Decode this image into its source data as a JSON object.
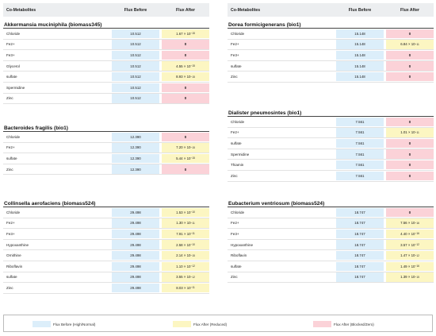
{
  "headers": {
    "name": "Co-Metabolites",
    "before": "Flux Before",
    "after": "Flux After"
  },
  "colors": {
    "header_bg": "#eceef0",
    "before": "#dceefa",
    "reduced": "#fcf6c2",
    "blocked": "#fbd2d8"
  },
  "left": [
    {
      "organism": "Akkermansia muciniphila (biomass345)",
      "rows": [
        {
          "name": "Chloride",
          "before": "10.512",
          "after_mant": "1.67 × 10",
          "after_exp": "−15",
          "status": "reduced"
        },
        {
          "name": "Fe2+",
          "before": "10.512",
          "after_mant": "0",
          "after_exp": "",
          "status": "blocked"
        },
        {
          "name": "Fe3+",
          "before": "10.512",
          "after_mant": "0",
          "after_exp": "",
          "status": "blocked"
        },
        {
          "name": "Glycerol",
          "before": "10.512",
          "after_mant": "4.55 × 10",
          "after_exp": "−15",
          "status": "reduced"
        },
        {
          "name": "sulfate",
          "before": "10.512",
          "after_mant": "8.93 × 10",
          "after_exp": "−15",
          "status": "reduced"
        },
        {
          "name": "Spermidine",
          "before": "10.512",
          "after_mant": "0",
          "after_exp": "",
          "status": "blocked"
        },
        {
          "name": "Zinc",
          "before": "10.512",
          "after_mant": "0",
          "after_exp": "",
          "status": "blocked"
        }
      ]
    },
    {
      "organism": "Bacteroides fragilis (bio1)",
      "rows": [
        {
          "name": "Chloride",
          "before": "12.390",
          "after_mant": "0",
          "after_exp": "",
          "status": "blocked"
        },
        {
          "name": "Fe2+",
          "before": "12.390",
          "after_mant": "7.20 × 10",
          "after_exp": "−15",
          "status": "reduced"
        },
        {
          "name": "sulfate",
          "before": "12.390",
          "after_mant": "5.44 × 10",
          "after_exp": "−15",
          "status": "reduced"
        },
        {
          "name": "Zinc",
          "before": "12.390",
          "after_mant": "0",
          "after_exp": "",
          "status": "blocked"
        }
      ]
    },
    {
      "organism": "Collinsella aerofaciens (biomass524)",
      "rows": [
        {
          "name": "Chloride",
          "before": "29.498",
          "after_mant": "1.53 × 10",
          "after_exp": "−10",
          "status": "reduced"
        },
        {
          "name": "Fe2+",
          "before": "29.498",
          "after_mant": "1.30 × 10",
          "after_exp": "−11",
          "status": "reduced"
        },
        {
          "name": "Fe3+",
          "before": "29.498",
          "after_mant": "7.91 × 10",
          "after_exp": "−11",
          "status": "reduced"
        },
        {
          "name": "Hypoxanthine",
          "before": "29.498",
          "after_mant": "2.58 × 10",
          "after_exp": "−10",
          "status": "reduced"
        },
        {
          "name": "Ornithine",
          "before": "29.498",
          "after_mant": "2.14 × 10",
          "after_exp": "−15",
          "status": "reduced"
        },
        {
          "name": "Riboflavin",
          "before": "29.498",
          "after_mant": "1.10 × 10",
          "after_exp": "−12",
          "status": "reduced"
        },
        {
          "name": "sulfate",
          "before": "29.498",
          "after_mant": "3.55 × 10",
          "after_exp": "−12",
          "status": "reduced"
        },
        {
          "name": "Zinc",
          "before": "29.498",
          "after_mant": "8.03 × 10",
          "after_exp": "−11",
          "status": "reduced"
        }
      ]
    }
  ],
  "right": [
    {
      "organism": "Dorea formicigenerans (bio1)",
      "rows": [
        {
          "name": "Chloride",
          "before": "15.148",
          "after_mant": "0",
          "after_exp": "",
          "status": "blocked"
        },
        {
          "name": "Fe2+",
          "before": "15.148",
          "after_mant": "6.84 × 10",
          "after_exp": "−11",
          "status": "reduced"
        },
        {
          "name": "Fe3+",
          "before": "15.148",
          "after_mant": "0",
          "after_exp": "",
          "status": "blocked"
        },
        {
          "name": "sulfate",
          "before": "15.148",
          "after_mant": "0",
          "after_exp": "",
          "status": "blocked"
        },
        {
          "name": "Zinc",
          "before": "15.148",
          "after_mant": "0",
          "after_exp": "",
          "status": "blocked"
        }
      ]
    },
    {
      "organism": "Dialister pneumosintes (bio1)",
      "rows": [
        {
          "name": "Chloride",
          "before": "7.561",
          "after_mant": "0",
          "after_exp": "",
          "status": "blocked"
        },
        {
          "name": "Fe2+",
          "before": "7.561",
          "after_mant": "1.01 × 10",
          "after_exp": "−11",
          "status": "reduced"
        },
        {
          "name": "sulfate",
          "before": "7.561",
          "after_mant": "0",
          "after_exp": "",
          "status": "blocked"
        },
        {
          "name": "Spermidine",
          "before": "7.561",
          "after_mant": "0",
          "after_exp": "",
          "status": "blocked"
        },
        {
          "name": "Thiamin",
          "before": "7.561",
          "after_mant": "0",
          "after_exp": "",
          "status": "blocked"
        },
        {
          "name": "Zinc",
          "before": "7.561",
          "after_mant": "0",
          "after_exp": "",
          "status": "blocked"
        }
      ]
    },
    {
      "organism": "Eubacterium ventriosum (biomass524)",
      "rows": [
        {
          "name": "Chloride",
          "before": "18.747",
          "after_mant": "0",
          "after_exp": "",
          "status": "blocked"
        },
        {
          "name": "Fe2+",
          "before": "18.747",
          "after_mant": "7.56 × 10",
          "after_exp": "−16",
          "status": "reduced"
        },
        {
          "name": "Fe3+",
          "before": "18.747",
          "after_mant": "4.40 × 10",
          "after_exp": "−16",
          "status": "reduced"
        },
        {
          "name": "Hypoxanthine",
          "before": "18.747",
          "after_mant": "3.57 × 10",
          "after_exp": "−12",
          "status": "reduced"
        },
        {
          "name": "Riboflavin",
          "before": "18.747",
          "after_mant": "1.47 × 10",
          "after_exp": "−12",
          "status": "reduced"
        },
        {
          "name": "sulfate",
          "before": "18.747",
          "after_mant": "1.49 × 10",
          "after_exp": "−16",
          "status": "reduced"
        },
        {
          "name": "Zinc",
          "before": "18.747",
          "after_mant": "1.39 × 10",
          "after_exp": "−15",
          "status": "reduced"
        }
      ]
    }
  ],
  "legend": {
    "before": "Flux Before (High/Normal)",
    "reduced": "Flux After (Reduced)",
    "blocked": "Flux After (Blocked/Zero)"
  }
}
